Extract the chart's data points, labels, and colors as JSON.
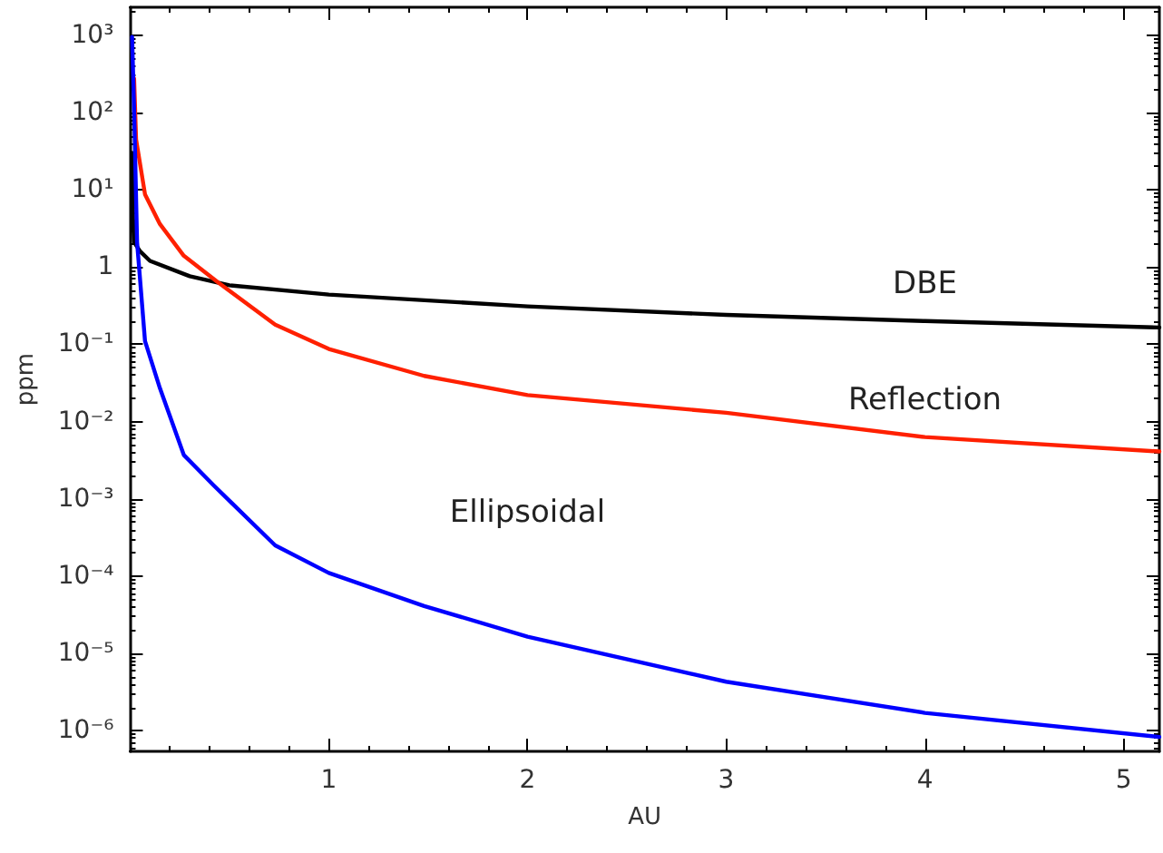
{
  "chart_data": {
    "type": "line",
    "xlabel": "AU",
    "ylabel": "ppm",
    "log": "y",
    "grid": false,
    "legend": false,
    "marker": "none",
    "line_style": "solid",
    "xlim": [
      0,
      5.18
    ],
    "xticks": [
      1,
      2,
      3,
      4,
      5
    ],
    "ylim": [
      5.4e-07,
      2300
    ],
    "yticks": [
      {
        "value": 1e-06,
        "label": "10⁻⁶"
      },
      {
        "value": 1e-05,
        "label": "10⁻⁵"
      },
      {
        "value": 0.0001,
        "label": "10⁻⁴"
      },
      {
        "value": 0.001,
        "label": "10⁻³"
      },
      {
        "value": 0.01,
        "label": "10⁻²"
      },
      {
        "value": 0.1,
        "label": "10⁻¹"
      },
      1,
      {
        "value": 10,
        "label": "10¹"
      },
      {
        "value": 100,
        "label": "10²"
      },
      {
        "value": 1000,
        "label": "10³"
      }
    ],
    "series": [
      {
        "name": "DBE",
        "color": "#000000",
        "x": [
          0.01,
          0.015,
          0.02,
          0.05,
          0.1,
          0.3,
          0.5,
          1,
          2,
          3,
          4,
          5.18
        ],
        "values": [
          30,
          4,
          2.1,
          1.6,
          1.2,
          0.76,
          0.58,
          0.44,
          0.31,
          0.24,
          0.2,
          0.165
        ]
      },
      {
        "name": "Reflection",
        "color": "#ff2000",
        "x": [
          0.02,
          0.03,
          0.075,
          0.15,
          0.27,
          0.44,
          0.73,
          1,
          1.48,
          2,
          3,
          4,
          5.18
        ],
        "values": [
          275,
          45,
          8.7,
          3.6,
          1.4,
          0.64,
          0.18,
          0.087,
          0.039,
          0.022,
          0.013,
          0.0063,
          0.0041
        ]
      },
      {
        "name": "Ellipsoidal",
        "color": "#0000ff",
        "x": [
          0.01,
          0.02,
          0.035,
          0.075,
          0.15,
          0.27,
          0.42,
          0.73,
          1,
          1.48,
          2,
          3,
          4,
          5.18
        ],
        "values": [
          950,
          110,
          2.1,
          0.11,
          0.027,
          0.0037,
          0.0015,
          0.00025,
          0.00011,
          4.1e-05,
          1.65e-05,
          4.3e-06,
          1.7e-06,
          8.3e-07
        ]
      }
    ]
  }
}
